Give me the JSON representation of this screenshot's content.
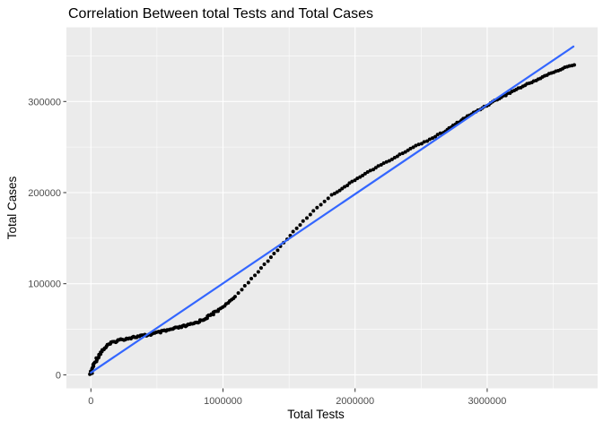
{
  "chart_data": {
    "type": "scatter",
    "title": "Correlation Between total Tests and Total Cases",
    "xlabel": "Total Tests",
    "ylabel": "Total Cases",
    "x_ticks": {
      "values": [
        0,
        1000000,
        2000000,
        3000000
      ],
      "labels": [
        "0",
        "1000000",
        "2000000",
        "3000000"
      ]
    },
    "x_minor": [
      500000,
      1500000,
      2500000,
      3500000
    ],
    "y_ticks": {
      "values": [
        0,
        100000,
        200000,
        300000
      ],
      "labels": [
        "0",
        "100000",
        "200000",
        "300000"
      ]
    },
    "y_minor": [
      50000,
      150000,
      250000,
      350000
    ],
    "xlim": [
      -185500,
      3836000
    ],
    "ylim": [
      -14850,
      381400
    ],
    "grid": true,
    "legend": "none",
    "colors": {
      "panel_bg": "#EBEBEB",
      "grid": "#FFFFFF",
      "points": "#000000",
      "trend": "#3366FF",
      "axis_text": "#4D4D4D",
      "tick_mark": "#333333",
      "title_text": "#000000"
    },
    "series": [
      {
        "name": "observations",
        "points": [
          [
            0,
            400
          ],
          [
            11500,
            7300
          ],
          [
            28500,
            13200
          ],
          [
            45500,
            18100
          ],
          [
            66000,
            23000
          ],
          [
            93000,
            27900
          ],
          [
            127000,
            32300
          ],
          [
            168000,
            35800
          ],
          [
            215000,
            38200
          ],
          [
            270000,
            39900
          ],
          [
            331000,
            41400
          ],
          [
            399000,
            42900
          ],
          [
            480000,
            45300
          ],
          [
            575000,
            48600
          ],
          [
            670000,
            52000
          ],
          [
            766000,
            55500
          ],
          [
            847000,
            60400
          ],
          [
            922000,
            66800
          ],
          [
            997000,
            74600
          ],
          [
            1071000,
            82500
          ],
          [
            1160000,
            96800
          ],
          [
            1248000,
            110500
          ],
          [
            1336000,
            124300
          ],
          [
            1424000,
            139000
          ],
          [
            1513000,
            153800
          ],
          [
            1601000,
            167600
          ],
          [
            1703000,
            182300
          ],
          [
            1812000,
            196100
          ],
          [
            1927000,
            206900
          ],
          [
            2049000,
            218700
          ],
          [
            2172000,
            228500
          ],
          [
            2301000,
            238400
          ],
          [
            2430000,
            249200
          ],
          [
            2559000,
            258000
          ],
          [
            2688000,
            267900
          ],
          [
            2817000,
            280700
          ],
          [
            2946000,
            291500
          ],
          [
            3075000,
            302300
          ],
          [
            3204000,
            312100
          ],
          [
            3334000,
            321000
          ],
          [
            3463000,
            329800
          ],
          [
            3565000,
            335700
          ],
          [
            3666000,
            341100
          ]
        ]
      }
    ],
    "trend": {
      "name": "linear-fit",
      "x": [
        0,
        3653000
      ],
      "y": [
        2400,
        360300
      ]
    },
    "layout": {
      "point_radius": 2,
      "trend_width": 2.2,
      "dot_spacing_px": [
        {
          "upto": 960000,
          "step": 1.6,
          "jitter": 1.2
        },
        {
          "upto": 1090000,
          "step": 2.6,
          "jitter": 0.6
        },
        {
          "upto": 1800000,
          "step": 5.4,
          "jitter": 0.45
        },
        {
          "upto": 2650000,
          "step": 3.4,
          "jitter": 0.5
        },
        {
          "upto": 4000000,
          "step": 2.7,
          "jitter": 0.7
        }
      ]
    }
  }
}
